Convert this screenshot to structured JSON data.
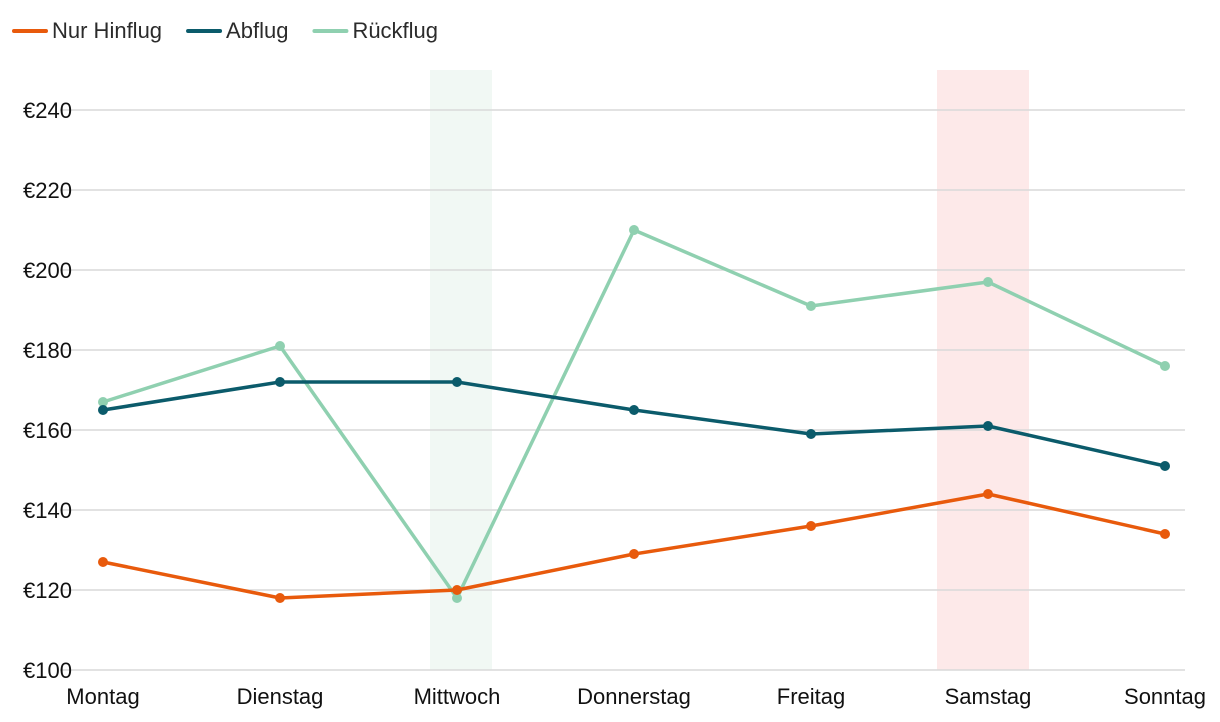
{
  "chart_data": {
    "type": "line",
    "categories": [
      "Montag",
      "Dienstag",
      "Mittwoch",
      "Donnerstag",
      "Freitag",
      "Samstag",
      "Sonntag"
    ],
    "y_ticks": [
      "€100",
      "€120",
      "€140",
      "€160",
      "€180",
      "€200",
      "€220",
      "€240"
    ],
    "ylim": [
      100,
      250
    ],
    "grid": true,
    "legend_position": "top-left",
    "series": [
      {
        "name": "Nur Hinflug",
        "color": "#e85a0c",
        "values": [
          127,
          118,
          120,
          129,
          136,
          144,
          134
        ]
      },
      {
        "name": "Abflug",
        "color": "#0b5b6b",
        "values": [
          165,
          172,
          172,
          165,
          159,
          161,
          151
        ]
      },
      {
        "name": "Rückflug",
        "color": "#8fd0b0",
        "values": [
          167,
          181,
          118,
          210,
          191,
          197,
          176
        ]
      }
    ],
    "highlights": [
      {
        "category": "Mittwoch",
        "color": "#f1f8f4"
      },
      {
        "category": "Samstag",
        "color": "#fde9e9"
      }
    ]
  }
}
